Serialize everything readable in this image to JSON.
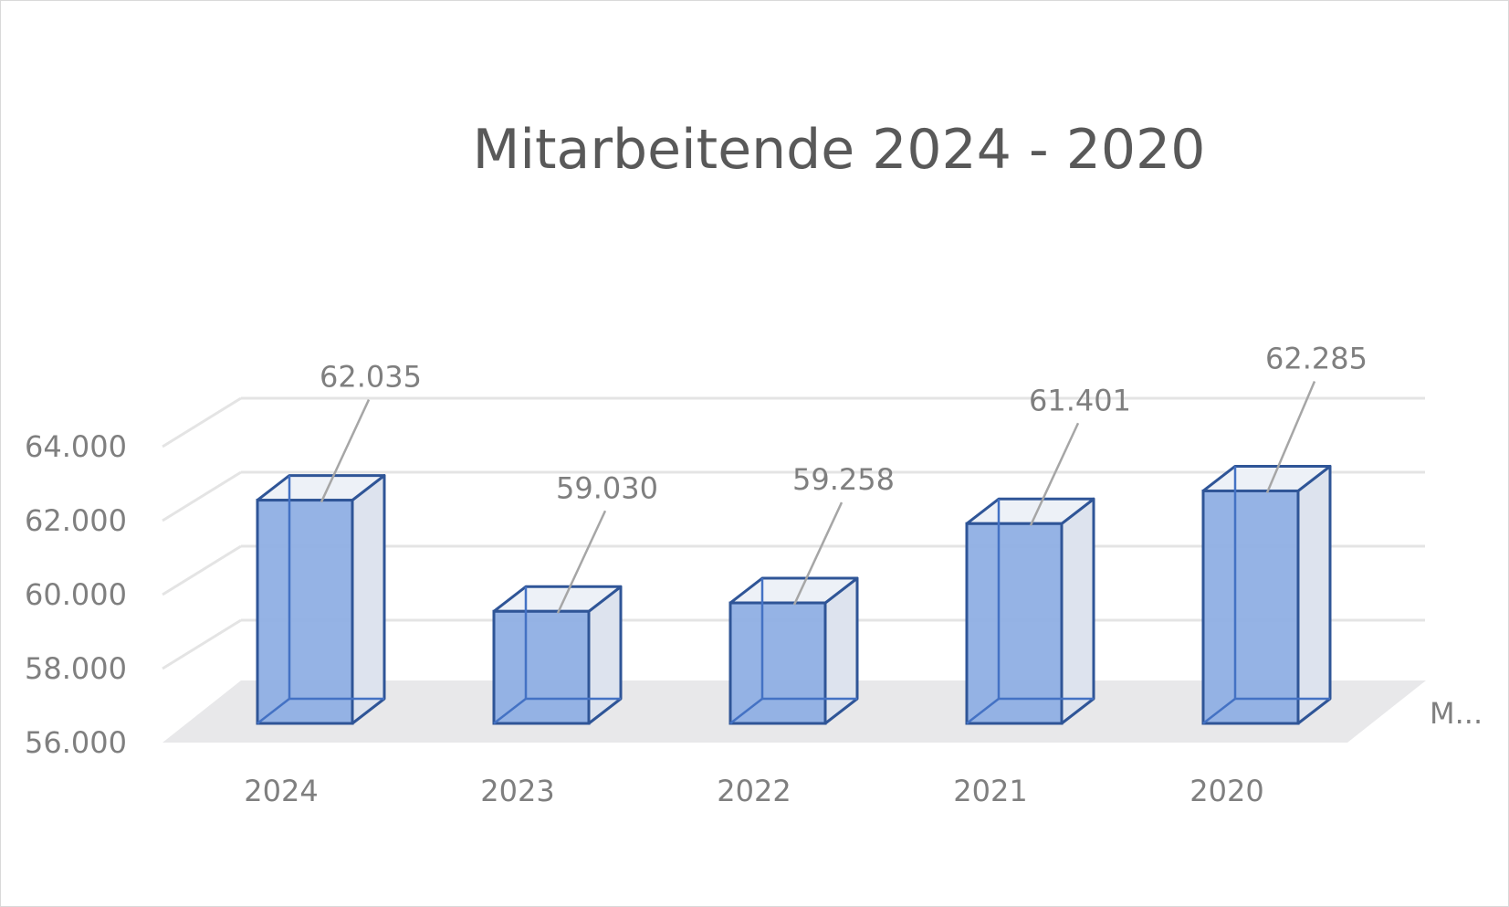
{
  "chart_data": {
    "type": "bar",
    "style": "3d-column",
    "title": "Mitarbeitende 2024 - 2020",
    "categories": [
      "2024",
      "2023",
      "2022",
      "2021",
      "2020"
    ],
    "series": [
      {
        "name": "M...",
        "values": [
          62035,
          59030,
          59258,
          61401,
          62285
        ],
        "labels": [
          "62.035",
          "59.030",
          "59.258",
          "61.401",
          "62.285"
        ]
      }
    ],
    "y_ticks": [
      56000,
      58000,
      60000,
      62000,
      64000
    ],
    "y_tick_labels": [
      "56.000",
      "58.000",
      "60.000",
      "62.000",
      "64.000"
    ],
    "ylim": [
      56000,
      64000
    ],
    "grid": true,
    "legend": "none",
    "colors": {
      "bar_fill": "#8FAFE4",
      "bar_side": "#DDE3EE",
      "bar_top": "#EDF1F7",
      "bar_edge": "#2F5597",
      "bar_inner_edge": "#4472C4",
      "floor": "#E8E8EA",
      "gridline": "#E4E4E4",
      "leader": "#A6A6A6",
      "text": "#7F7F7F",
      "title": "#595959"
    }
  }
}
